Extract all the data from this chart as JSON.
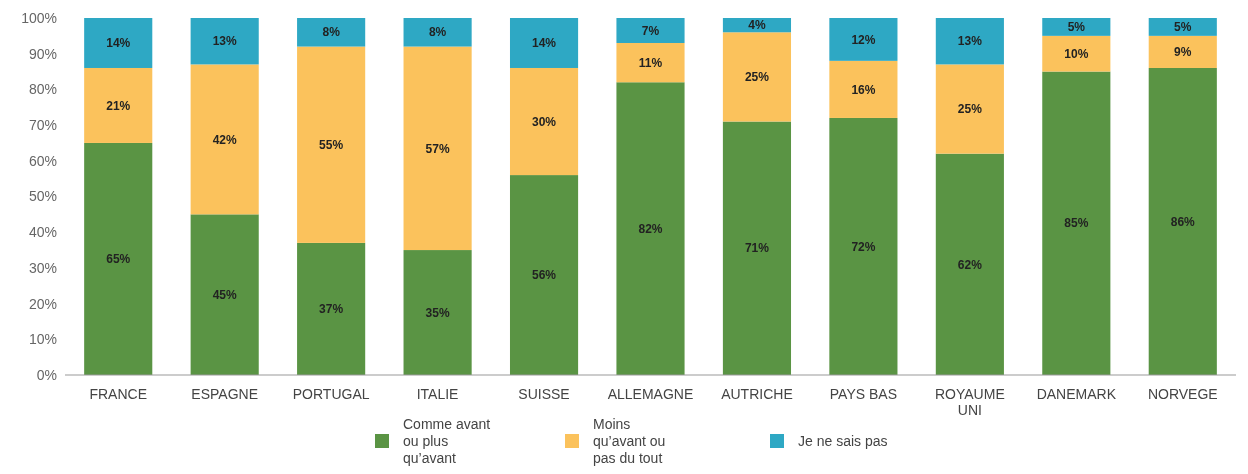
{
  "chart_data": {
    "type": "bar",
    "stacked": true,
    "categories": [
      "FRANCE",
      "ESPAGNE",
      "PORTUGAL",
      "ITALIE",
      "SUISSE",
      "ALLEMAGNE",
      "AUTRICHE",
      "PAYS BAS",
      "ROYAUME UNI",
      "DANEMARK",
      "NORVEGE"
    ],
    "series": [
      {
        "name": "Comme avant ou plus qu’avant",
        "color": "#5a9444",
        "values": [
          65,
          45,
          37,
          35,
          56,
          82,
          71,
          72,
          62,
          85,
          86
        ],
        "value_labels": [
          "65%",
          "45%",
          "37%",
          "35%",
          "56%",
          "82%",
          "71%",
          "72%",
          "62%",
          "85%",
          "86%"
        ]
      },
      {
        "name": "Moins qu’avant ou pas du tout",
        "color": "#fbc25c",
        "values": [
          21,
          42,
          55,
          57,
          30,
          11,
          25,
          16,
          25,
          10,
          9
        ],
        "value_labels": [
          "21%",
          "42%",
          "55%",
          "57%",
          "30%",
          "11%",
          "25%",
          "16%",
          "25%",
          "10%",
          "9%"
        ]
      },
      {
        "name": "Je ne sais pas",
        "color": "#2ea8c4",
        "values": [
          14,
          13,
          8,
          8,
          14,
          7,
          4,
          12,
          13,
          5,
          5
        ],
        "value_labels": [
          "14%",
          "13%",
          "8%",
          "8%",
          "14%",
          "7%",
          "4%",
          "12%",
          "13%",
          "5%",
          "5%"
        ]
      }
    ],
    "ylim": [
      0,
      100
    ],
    "yticks": [
      {
        "value": 0,
        "label": "0%"
      },
      {
        "value": 10,
        "label": "10%"
      },
      {
        "value": 20,
        "label": "20%"
      },
      {
        "value": 30,
        "label": "30%"
      },
      {
        "value": 40,
        "label": "40%"
      },
      {
        "value": 50,
        "label": "50%"
      },
      {
        "value": 60,
        "label": "60%"
      },
      {
        "value": 70,
        "label": "70%"
      },
      {
        "value": 80,
        "label": "80%"
      },
      {
        "value": 90,
        "label": "90%"
      },
      {
        "value": 100,
        "label": "100%"
      }
    ],
    "legend": "bottom"
  }
}
